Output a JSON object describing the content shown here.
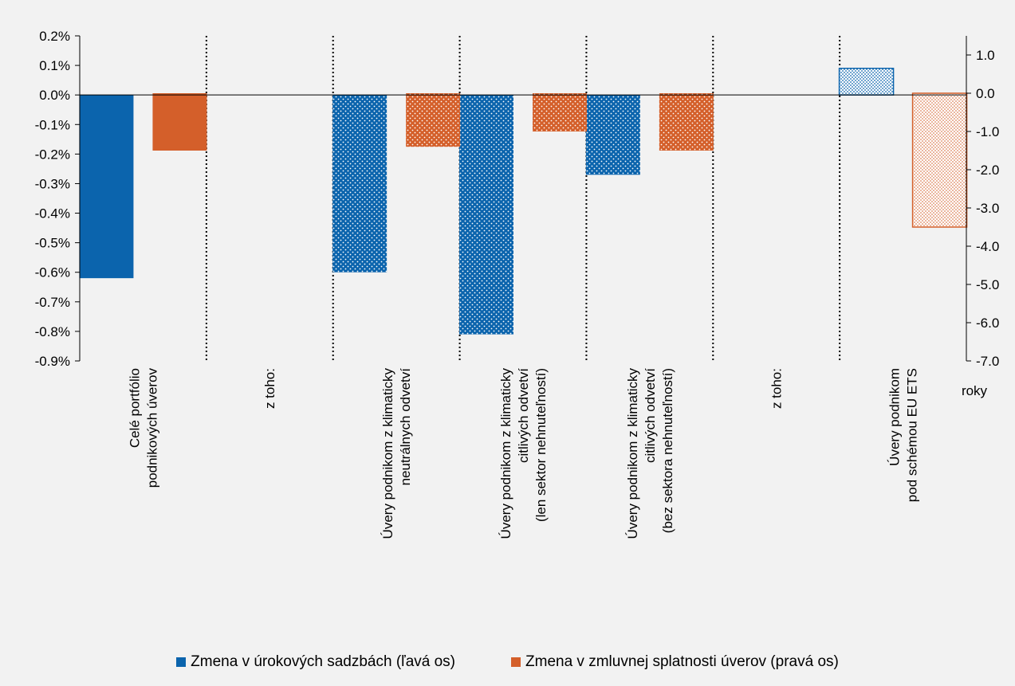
{
  "colors": {
    "blue": "#0b64ad",
    "orange": "#d45f2a",
    "background": "#f2f2f2"
  },
  "chart_data": {
    "type": "bar",
    "categories": [
      "Celé portfólio\npodnikových úverov",
      "z toho:",
      "Úvery podnikom z klimaticky\nneutrálnych odvetví",
      "Úvery podnikom z klimaticky\ncitlivých odvetví\n(len sektor nehnuteľností)",
      "Úvery podnikom z klimaticky\ncitlivých odvetví\n(bez sektora nehnuteľností)",
      "z toho:",
      "Úvery podnikom\npod schémou EU ETS"
    ],
    "series": [
      {
        "name": "Zmena v úrokových sadzbách (ľavá os)",
        "axis": "left",
        "color": "#0b64ad",
        "values": [
          -0.62,
          null,
          -0.6,
          -0.81,
          -0.27,
          null,
          0.09
        ],
        "patterns": [
          "solid",
          null,
          "dotted",
          "dotted",
          "dotted",
          null,
          "dotted-light"
        ]
      },
      {
        "name": "Zmena v zmluvnej splatnosti úverov (pravá os)",
        "axis": "right",
        "color": "#d45f2a",
        "values": [
          -1.5,
          null,
          -1.4,
          -1.0,
          -1.5,
          null,
          -3.5
        ],
        "patterns": [
          "solid",
          null,
          "dotted",
          "dotted",
          "dotted",
          null,
          "dotted-light"
        ]
      }
    ],
    "left_axis": {
      "ylim": [
        -0.9,
        0.2
      ],
      "ticks": [
        "0.2%",
        "0.1%",
        "0.0%",
        "-0.1%",
        "-0.2%",
        "-0.3%",
        "-0.4%",
        "-0.5%",
        "-0.6%",
        "-0.7%",
        "-0.8%",
        "-0.9%"
      ]
    },
    "right_axis": {
      "ylim": [
        -7.0,
        1.5
      ],
      "ticks": [
        "1.0",
        "0.0",
        "-1.0",
        "-2.0",
        "-3.0",
        "-4.0",
        "-5.0",
        "-6.0",
        "-7.0"
      ],
      "unit_label": "roky"
    },
    "separators_after_categories": [
      0,
      1,
      2,
      3,
      4,
      5
    ],
    "grid": false,
    "legend_position": "bottom"
  }
}
